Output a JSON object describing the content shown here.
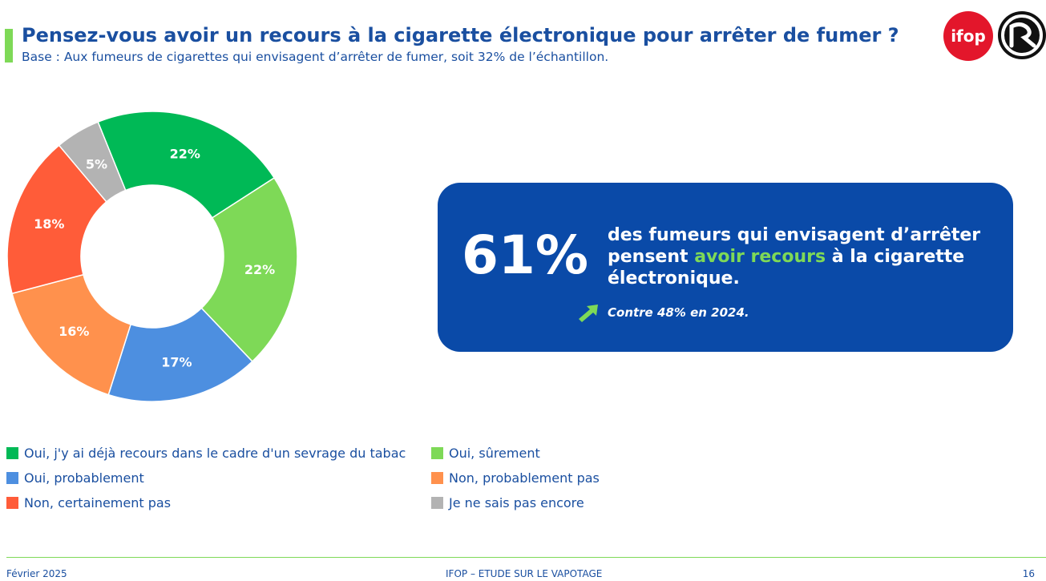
{
  "header": {
    "title": "Pensez-vous avoir un recours à la cigarette électronique pour arrêter de fumer ?",
    "subtitle": "Base : Aux fumeurs de cigarettes qui envisagent d’arrêter de fumer, soit 32% de l’échantillon."
  },
  "logos": {
    "ifop": "ifop"
  },
  "chart_data": {
    "type": "pie",
    "categories": [
      "Oui, j'y ai déjà recours dans le cadre d'un sevrage du tabac",
      "Oui, sûrement",
      "Oui, probablement",
      "Non, probablement pas",
      "Non, certainement pas",
      "Je ne sais pas encore"
    ],
    "values": [
      22,
      22,
      17,
      16,
      18,
      5
    ],
    "value_labels": [
      "22%",
      "22%",
      "17%",
      "16%",
      "18%",
      "5%"
    ],
    "colors": [
      "#00b956",
      "#7ed957",
      "#4d8fe0",
      "#ff914d",
      "#ff5c39",
      "#b3b3b3"
    ],
    "donut": true,
    "legend": "bottom"
  },
  "callout": {
    "value": "61%",
    "text_before": "des fumeurs qui envisagent d’arrêter pensent ",
    "text_highlight": "avoir recours",
    "text_after": " à la cigarette électronique.",
    "trend_icon": "trend-up-arrow-icon",
    "trend_text": "Contre 48% en 2024."
  },
  "footer": {
    "date": "Février 2025",
    "center": "IFOP – ETUDE SUR LE VAPOTAGE",
    "page": "16"
  }
}
